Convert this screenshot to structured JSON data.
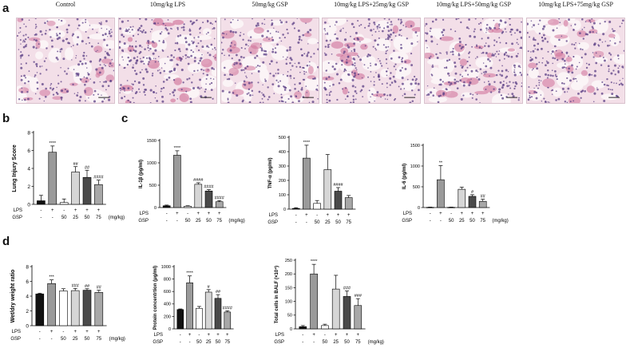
{
  "panel_letters": {
    "a": "a",
    "b": "b",
    "c": "c",
    "d": "d"
  },
  "micrographs": [
    {
      "label": "Control"
    },
    {
      "label": "10mg/kg LPS"
    },
    {
      "label": "50mg/kg GSP"
    },
    {
      "label": "10mg/kg LPS+25mg/kg GSP"
    },
    {
      "label": "10mg/kg LPS+50mg/kg GSP"
    },
    {
      "label": "10mg/kg LPS+75mg/kg GSP"
    }
  ],
  "colors": {
    "tissue_bg": "#f3dfe8",
    "nuclei": "#5b3f86",
    "alveolus": "#fbf4f7",
    "stroma": "#cf6f98"
  },
  "chart_data": [
    {
      "id": "lung_injury",
      "type": "bar",
      "title": "",
      "xlabel": "",
      "ylabel": "Lung Injury Score",
      "ylim": [
        0,
        8
      ],
      "yticks": [
        "0",
        "2",
        "4",
        "6",
        "8"
      ],
      "values": [
        0.4,
        5.8,
        0.2,
        3.6,
        3.0,
        2.2
      ],
      "errors": [
        0.6,
        0.7,
        0.4,
        0.6,
        0.8,
        0.5
      ],
      "colors": [
        "#111111",
        "#9a9a9a",
        "#ffffff",
        "#d6d6d6",
        "#4a4a4a",
        "#a8a8a8"
      ],
      "annotations": [
        "",
        "****",
        "",
        "##",
        "##",
        "####"
      ],
      "lps_row": {
        "label": "LPS",
        "marks": [
          "-",
          "+",
          "-",
          "+",
          "+",
          "+"
        ]
      },
      "gsp_row": {
        "label": "GSP",
        "marks": [
          "-",
          "-",
          "50",
          "25",
          "50",
          "75"
        ],
        "unit": "(mg/kg)"
      }
    },
    {
      "id": "il1b",
      "type": "bar",
      "title": "",
      "xlabel": "",
      "ylabel": "IL-1β (pg/ml)",
      "ylim": [
        0,
        1500
      ],
      "yticks": [
        "0",
        "500",
        "1000",
        "1500"
      ],
      "values": [
        40,
        1170,
        30,
        520,
        370,
        130
      ],
      "errors": [
        15,
        100,
        10,
        35,
        30,
        25
      ],
      "colors": [
        "#111111",
        "#9a9a9a",
        "#ffffff",
        "#d6d6d6",
        "#4a4a4a",
        "#a8a8a8"
      ],
      "annotations": [
        "",
        "****",
        "",
        "####",
        "####",
        "####"
      ],
      "lps_row": {
        "label": "LPS",
        "marks": [
          "-",
          "+",
          "-",
          "+",
          "+",
          "+"
        ]
      },
      "gsp_row": {
        "label": "GSP",
        "marks": [
          "-",
          "-",
          "50",
          "25",
          "50",
          "75"
        ],
        "unit": "(mg/kg)"
      }
    },
    {
      "id": "tnfa",
      "type": "bar",
      "title": "",
      "xlabel": "",
      "ylabel": "TNF-α (pg/ml)",
      "ylim": [
        0,
        500
      ],
      "yticks": [
        "0",
        "100",
        "200",
        "300",
        "400",
        "500"
      ],
      "values": [
        5,
        355,
        40,
        275,
        125,
        80
      ],
      "errors": [
        5,
        90,
        20,
        105,
        25,
        15
      ],
      "colors": [
        "#111111",
        "#9a9a9a",
        "#ffffff",
        "#d6d6d6",
        "#4a4a4a",
        "#a8a8a8"
      ],
      "annotations": [
        "",
        "****",
        "",
        "",
        "####",
        ""
      ],
      "lps_row": {
        "label": "LPS",
        "marks": [
          "-",
          "+",
          "-",
          "+",
          "+",
          "+"
        ]
      },
      "gsp_row": {
        "label": "GSP",
        "marks": [
          "-",
          "-",
          "50",
          "25",
          "50",
          "75"
        ],
        "unit": ""
      }
    },
    {
      "id": "il6",
      "type": "bar",
      "title": "",
      "xlabel": "",
      "ylabel": "IL-6 (pg/ml)",
      "ylim": [
        0,
        1500
      ],
      "yticks": [
        "0",
        "500",
        "1000",
        "1500"
      ],
      "values": [
        5,
        670,
        5,
        440,
        270,
        150
      ],
      "errors": [
        5,
        340,
        5,
        50,
        40,
        50
      ],
      "colors": [
        "#111111",
        "#9a9a9a",
        "#ffffff",
        "#d6d6d6",
        "#4a4a4a",
        "#a8a8a8"
      ],
      "annotations": [
        "",
        "**",
        "",
        "",
        "#",
        "##"
      ],
      "lps_row": {
        "label": "LPS",
        "marks": [
          "-",
          "+",
          "-",
          "+",
          "+",
          "+"
        ]
      },
      "gsp_row": {
        "label": "GSP",
        "marks": [
          "-",
          "-",
          "50",
          "25",
          "50",
          "75"
        ],
        "unit": "(mg/kg)"
      }
    },
    {
      "id": "wet_dry",
      "type": "bar",
      "title": "",
      "xlabel": "",
      "ylabel": "Wet/dry weight ratio",
      "ylim": [
        0,
        8
      ],
      "yticks": [
        "0",
        "2",
        "4",
        "6",
        "8"
      ],
      "values": [
        4.3,
        5.7,
        4.7,
        4.75,
        4.8,
        4.5
      ],
      "errors": [
        0.1,
        0.5,
        0.3,
        0.3,
        0.2,
        0.3
      ],
      "colors": [
        "#111111",
        "#9a9a9a",
        "#ffffff",
        "#d6d6d6",
        "#4a4a4a",
        "#a8a8a8"
      ],
      "annotations": [
        "",
        "***",
        "",
        "###",
        "##",
        "##"
      ],
      "lps_row": {
        "label": "LPS",
        "marks": [
          "-",
          "+",
          "-",
          "+",
          "+",
          "+"
        ]
      },
      "gsp_row": {
        "label": "GSP",
        "marks": [
          "-",
          "-",
          "50",
          "25",
          "50",
          "75"
        ],
        "unit": "(mg/kg)"
      }
    },
    {
      "id": "protein",
      "type": "bar",
      "title": "",
      "xlabel": "",
      "ylabel": "Protein concentrtion (μg/ml)",
      "ylim": [
        0,
        1000
      ],
      "yticks": [
        "0",
        "200",
        "400",
        "600",
        "800",
        "1000"
      ],
      "values": [
        310,
        740,
        330,
        590,
        490,
        270
      ],
      "errors": [
        10,
        110,
        30,
        40,
        60,
        20
      ],
      "colors": [
        "#111111",
        "#9a9a9a",
        "#ffffff",
        "#d6d6d6",
        "#4a4a4a",
        "#a8a8a8"
      ],
      "annotations": [
        "",
        "****",
        "",
        "#",
        "##",
        "####"
      ],
      "lps_row": {
        "label": "LPS",
        "marks": [
          "-",
          "+",
          "-",
          "+",
          "+",
          "+"
        ]
      },
      "gsp_row": {
        "label": "GSP",
        "marks": [
          "-",
          "-",
          "50",
          "25",
          "50",
          "75"
        ],
        "unit": ""
      }
    },
    {
      "id": "balf_cells",
      "type": "bar",
      "title": "",
      "xlabel": "",
      "ylabel": "Total cells in BALF (×10⁴)",
      "ylim": [
        0,
        250
      ],
      "yticks": [
        "0",
        "50",
        "100",
        "150",
        "200",
        "250"
      ],
      "values": [
        8,
        200,
        12,
        145,
        118,
        85
      ],
      "errors": [
        4,
        35,
        5,
        50,
        20,
        25
      ],
      "colors": [
        "#111111",
        "#9a9a9a",
        "#ffffff",
        "#d6d6d6",
        "#4a4a4a",
        "#a8a8a8"
      ],
      "annotations": [
        "",
        "****",
        "",
        "",
        "###",
        "###"
      ],
      "lps_row": {
        "label": "LPS",
        "marks": [
          "-",
          "+",
          "-",
          "+",
          "+",
          "+"
        ]
      },
      "gsp_row": {
        "label": "GSP",
        "marks": [
          "-",
          "-",
          "50",
          "25",
          "50",
          "75"
        ],
        "unit": "(mg/kg)"
      }
    }
  ]
}
